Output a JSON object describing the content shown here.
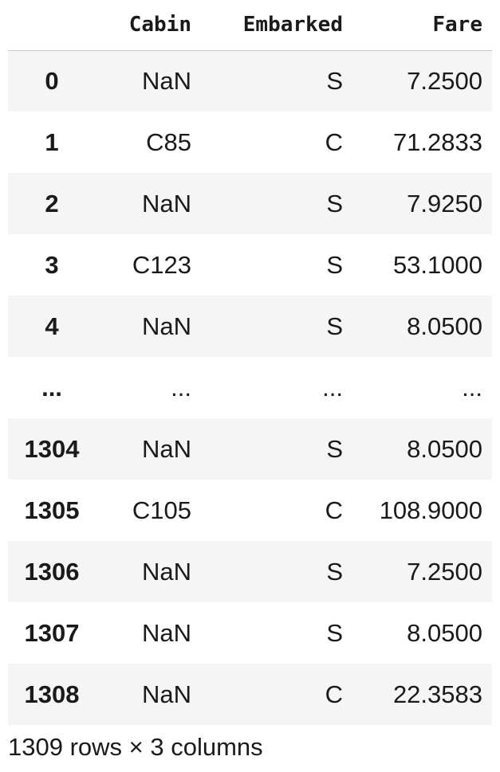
{
  "table": {
    "columns": [
      "",
      "Cabin",
      "Embarked",
      "Fare"
    ],
    "rows": [
      {
        "index": "0",
        "cabin": "NaN",
        "embarked": "S",
        "fare": "7.2500"
      },
      {
        "index": "1",
        "cabin": "C85",
        "embarked": "C",
        "fare": "71.2833"
      },
      {
        "index": "2",
        "cabin": "NaN",
        "embarked": "S",
        "fare": "7.9250"
      },
      {
        "index": "3",
        "cabin": "C123",
        "embarked": "S",
        "fare": "53.1000"
      },
      {
        "index": "4",
        "cabin": "NaN",
        "embarked": "S",
        "fare": "8.0500"
      },
      {
        "index": "...",
        "cabin": "...",
        "embarked": "...",
        "fare": "..."
      },
      {
        "index": "1304",
        "cabin": "NaN",
        "embarked": "S",
        "fare": "8.0500"
      },
      {
        "index": "1305",
        "cabin": "C105",
        "embarked": "C",
        "fare": "108.9000"
      },
      {
        "index": "1306",
        "cabin": "NaN",
        "embarked": "S",
        "fare": "7.2500"
      },
      {
        "index": "1307",
        "cabin": "NaN",
        "embarked": "S",
        "fare": "8.0500"
      },
      {
        "index": "1308",
        "cabin": "NaN",
        "embarked": "C",
        "fare": "22.3583"
      }
    ]
  },
  "caption": "1309 rows × 3 columns"
}
